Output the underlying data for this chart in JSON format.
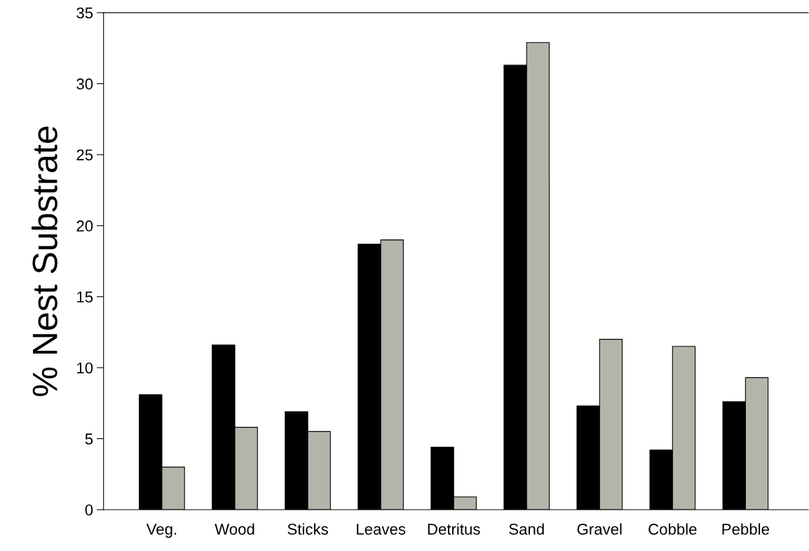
{
  "chart_data": {
    "type": "bar",
    "ylabel": "% Nest Substrate",
    "categories": [
      "Veg.",
      "Wood",
      "Sticks",
      "Leaves",
      "Detritus",
      "Sand",
      "Gravel",
      "Cobble",
      "Pebble"
    ],
    "series": [
      {
        "color": "#000000",
        "values": [
          8.1,
          11.6,
          6.9,
          18.7,
          4.4,
          31.3,
          7.3,
          4.2,
          7.6
        ]
      },
      {
        "color": "#b4b4aa",
        "values": [
          3.0,
          5.8,
          5.5,
          19.0,
          0.9,
          32.9,
          12.0,
          11.5,
          9.3
        ]
      }
    ],
    "ylim": [
      0,
      35
    ],
    "yticks": [
      0,
      5,
      10,
      15,
      20,
      25,
      30,
      35
    ],
    "grid": false,
    "legend": false
  }
}
